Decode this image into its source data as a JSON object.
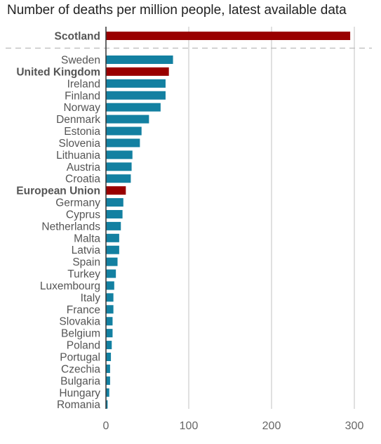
{
  "subtitle": "Number of deaths per million people, latest available data",
  "chart_data": {
    "type": "bar",
    "orientation": "horizontal",
    "subtitle": "Number of deaths per million people, latest available data",
    "categories": [
      "Scotland",
      "Sweden",
      "United Kingdom",
      "Ireland",
      "Finland",
      "Norway",
      "Denmark",
      "Estonia",
      "Slovenia",
      "Lithuania",
      "Austria",
      "Croatia",
      "European Union",
      "Germany",
      "Cyprus",
      "Netherlands",
      "Malta",
      "Latvia",
      "Spain",
      "Turkey",
      "Luxembourg",
      "Italy",
      "France",
      "Slovakia",
      "Belgium",
      "Poland",
      "Portugal",
      "Czechia",
      "Bulgaria",
      "Hungary",
      "Romania"
    ],
    "values": [
      295,
      81,
      76,
      72,
      72,
      66,
      52,
      43,
      41,
      32,
      31,
      30,
      24,
      21,
      20,
      18,
      16,
      16,
      14,
      12,
      10,
      9,
      9,
      8,
      8,
      7,
      6,
      5,
      5,
      4,
      2
    ],
    "highlighted": [
      "Scotland",
      "United Kingdom",
      "European Union"
    ],
    "separator_after": "Scotland",
    "x_ticks": [
      0,
      100,
      200,
      300
    ],
    "xlim": [
      0,
      300
    ],
    "grid": "vertical",
    "legend": "none",
    "colors": {
      "default": "#1380a1",
      "highlight": "#990000",
      "grid": "#cccccc",
      "axis": "#333333"
    }
  }
}
